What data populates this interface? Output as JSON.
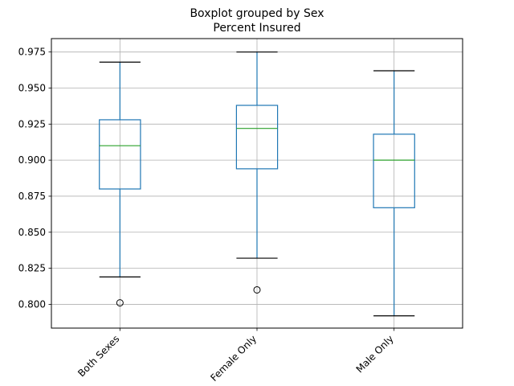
{
  "chart_data": {
    "type": "box",
    "title": "Boxplot grouped by Sex",
    "subtitle": "Percent Insured",
    "xlabel": "",
    "ylabel": "",
    "ylim": [
      0.7835,
      0.9843
    ],
    "yticks": [
      "0.800",
      "0.825",
      "0.850",
      "0.875",
      "0.900",
      "0.925",
      "0.950",
      "0.975"
    ],
    "grid": true,
    "categories": [
      "Both Sexes",
      "Female Only",
      "Male Only"
    ],
    "boxes": [
      {
        "whisker_low": 0.819,
        "q1": 0.88,
        "median": 0.91,
        "q3": 0.928,
        "whisker_high": 0.968,
        "outliers": [
          0.801
        ]
      },
      {
        "whisker_low": 0.832,
        "q1": 0.894,
        "median": 0.922,
        "q3": 0.938,
        "whisker_high": 0.975,
        "outliers": [
          0.81
        ]
      },
      {
        "whisker_low": 0.792,
        "q1": 0.867,
        "median": 0.9,
        "q3": 0.918,
        "whisker_high": 0.962,
        "outliers": []
      }
    ],
    "colors": {
      "box": "#1f77b4",
      "median": "#2ca02c",
      "whisker": "#1f77b4",
      "cap": "#000000",
      "grid": "#b0b0b0",
      "axes": "#000000"
    }
  }
}
